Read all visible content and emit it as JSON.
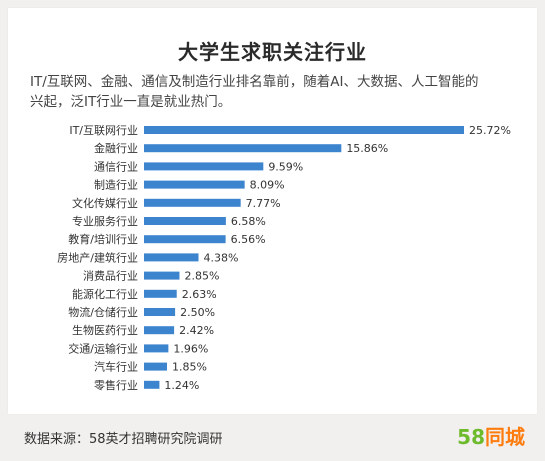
{
  "title": "大学生求职关注行业",
  "subtitle_lines": [
    "IT/互联网、金融、通信及制造行业排名靠前，随着AI、大数据、人工智能的",
    "兴起，泛IT行业一直是就业热门。"
  ],
  "footer": {
    "source": "数据来源：58英才招聘研究院调研"
  },
  "logo": {
    "number": "58",
    "text": "同城"
  },
  "colors": {
    "bar": "#3d84cf",
    "logo_green": "#6dbb2d",
    "logo_orange": "#ff7d10"
  },
  "chart_data": {
    "type": "bar",
    "orientation": "horizontal",
    "categories": [
      "IT/互联网行业",
      "金融行业",
      "通信行业",
      "制造行业",
      "文化传媒行业",
      "专业服务行业",
      "教育/培训行业",
      "房地产/建筑行业",
      "消费品行业",
      "能源化工行业",
      "物流/仓储行业",
      "生物医药行业",
      "交通/运输行业",
      "汽车行业",
      "零售行业"
    ],
    "values": [
      25.72,
      15.86,
      9.59,
      8.09,
      7.77,
      6.58,
      6.56,
      4.38,
      2.85,
      2.63,
      2.5,
      2.42,
      1.96,
      1.85,
      1.24
    ],
    "labels": [
      "25.72%",
      "15.86%",
      "9.59%",
      "8.09%",
      "7.77%",
      "6.58%",
      "6.56%",
      "4.38%",
      "2.85%",
      "2.63%",
      "2.50%",
      "2.42%",
      "1.96%",
      "1.85%",
      "1.24%"
    ],
    "title": "大学生求职关注行业",
    "xlabel": "",
    "ylabel": "",
    "grid": false
  }
}
